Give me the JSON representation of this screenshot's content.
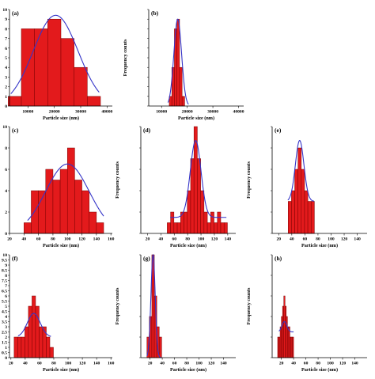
{
  "colors": {
    "bar_fill": "#e31a1c",
    "bar_stroke": "#7a0000",
    "fit": "#3535c8",
    "axis": "#000000"
  },
  "chart_data": [
    {
      "type": "bar",
      "panel": "(a)",
      "xlabel": "Particle size (nm)",
      "ylabel": "",
      "xlim": [
        3000,
        42000
      ],
      "ylim": [
        0,
        10
      ],
      "xticks": [
        10000,
        20000,
        30000,
        40000
      ],
      "yticks": [
        0,
        1,
        2,
        3,
        4,
        5,
        6,
        7,
        8,
        9,
        10
      ],
      "bin_width": 5000,
      "bins": [
        {
          "center": 5000,
          "count": 1
        },
        {
          "center": 10000,
          "count": 8
        },
        {
          "center": 15000,
          "count": 8
        },
        {
          "center": 20000,
          "count": 9
        },
        {
          "center": 25000,
          "count": 7
        },
        {
          "center": 30000,
          "count": 4
        },
        {
          "center": 35000,
          "count": 1
        }
      ],
      "fit": {
        "mean": 20500,
        "sd": 8500,
        "peak": 9.4,
        "range": [
          3500,
          37000
        ]
      },
      "show_yticklabels": true
    },
    {
      "type": "bar",
      "panel": "(b)",
      "xlabel": "Particle size (nm)",
      "ylabel": "Frequency counts",
      "xlim": [
        5000,
        42000
      ],
      "ylim": [
        0,
        10
      ],
      "xticks": [
        10000,
        20000,
        30000,
        40000
      ],
      "yticks": [
        0,
        1,
        2,
        3,
        4,
        5,
        6,
        7,
        8,
        9,
        10
      ],
      "bin_width": 1000,
      "bins": [
        {
          "center": 13500,
          "count": 1
        },
        {
          "center": 14500,
          "count": 4
        },
        {
          "center": 15500,
          "count": 8
        },
        {
          "center": 16500,
          "count": 9
        },
        {
          "center": 17500,
          "count": 4
        },
        {
          "center": 18500,
          "count": 1
        }
      ],
      "fit": {
        "mean": 16300,
        "sd": 1500,
        "peak": 9.0,
        "range": [
          12500,
          20500
        ]
      },
      "show_yticklabels": false
    },
    {
      "type": "bar",
      "panel": "(c)",
      "xlabel": "Particle size (nm)",
      "ylabel": "",
      "xlim": [
        20,
        162
      ],
      "ylim": [
        0,
        10
      ],
      "xticks": [
        20,
        40,
        60,
        80,
        100,
        120,
        140,
        160
      ],
      "yticks": [
        0,
        2,
        4,
        6,
        8,
        10
      ],
      "bin_width": 10,
      "bins": [
        {
          "center": 45,
          "count": 1
        },
        {
          "center": 55,
          "count": 4
        },
        {
          "center": 65,
          "count": 4
        },
        {
          "center": 75,
          "count": 6
        },
        {
          "center": 85,
          "count": 5
        },
        {
          "center": 95,
          "count": 6
        },
        {
          "center": 105,
          "count": 8
        },
        {
          "center": 115,
          "count": 5
        },
        {
          "center": 125,
          "count": 4
        },
        {
          "center": 135,
          "count": 2
        },
        {
          "center": 145,
          "count": 1
        }
      ],
      "fit": {
        "mean": 100,
        "sd": 30,
        "peak": 6.5,
        "range": [
          45,
          150
        ]
      },
      "show_yticklabels": true
    },
    {
      "type": "bar",
      "panel": "(d)",
      "xlabel": "Particle size (nm)",
      "ylabel": "Frequency counts",
      "xlim": [
        10,
        152
      ],
      "ylim": [
        0,
        10
      ],
      "xticks": [
        20,
        40,
        60,
        80,
        100,
        120,
        140
      ],
      "yticks": [
        0,
        2,
        4,
        6,
        8,
        10
      ],
      "bin_width": 5,
      "bins": [
        {
          "center": 52,
          "count": 1
        },
        {
          "center": 57,
          "count": 2
        },
        {
          "center": 62,
          "count": 1
        },
        {
          "center": 67,
          "count": 1
        },
        {
          "center": 72,
          "count": 2
        },
        {
          "center": 77,
          "count": 2
        },
        {
          "center": 82,
          "count": 4
        },
        {
          "center": 87,
          "count": 7
        },
        {
          "center": 92,
          "count": 10
        },
        {
          "center": 97,
          "count": 7
        },
        {
          "center": 102,
          "count": 4
        },
        {
          "center": 107,
          "count": 2
        },
        {
          "center": 112,
          "count": 1
        },
        {
          "center": 117,
          "count": 2
        },
        {
          "center": 122,
          "count": 1
        },
        {
          "center": 127,
          "count": 2
        },
        {
          "center": 132,
          "count": 1
        },
        {
          "center": 137,
          "count": 1
        }
      ],
      "fit": {
        "mean": 92,
        "sd": 8,
        "peak": 8.7,
        "base": 1.5,
        "range": [
          54,
          138
        ]
      },
      "show_yticklabels": false
    },
    {
      "type": "bar",
      "panel": "(e)",
      "xlabel": "Particle size (nm)",
      "ylabel": "Frequency counts",
      "xlim": [
        10,
        155
      ],
      "ylim": [
        0,
        10
      ],
      "xticks": [
        20,
        40,
        60,
        80,
        100,
        120,
        140
      ],
      "yticks": [
        0,
        2,
        4,
        6,
        8,
        10
      ],
      "bin_width": 5,
      "bins": [
        {
          "center": 37,
          "count": 3
        },
        {
          "center": 42,
          "count": 4
        },
        {
          "center": 47,
          "count": 6
        },
        {
          "center": 52,
          "count": 8
        },
        {
          "center": 57,
          "count": 6
        },
        {
          "center": 62,
          "count": 4
        },
        {
          "center": 67,
          "count": 3
        },
        {
          "center": 72,
          "count": 3
        }
      ],
      "fit": {
        "mean": 52,
        "sd": 6.5,
        "peak": 8.7,
        "base": 3,
        "range": [
          34,
          74
        ]
      },
      "show_yticklabels": false
    },
    {
      "type": "bar",
      "panel": "(f)",
      "xlabel": "Particle size (nm)",
      "ylabel": "",
      "xlim": [
        18,
        162
      ],
      "ylim": [
        0,
        10
      ],
      "xticks": [
        20,
        40,
        60,
        80,
        100,
        120,
        140,
        160
      ],
      "yticks": [
        0,
        0.5,
        1,
        1.5,
        2,
        2.5,
        3,
        3.5,
        4,
        4.5,
        5,
        5.5,
        6,
        6.5,
        7,
        7.5,
        8,
        8.5,
        9,
        9.5,
        10
      ],
      "ytick_labels": [
        "0",
        "0.5",
        "1",
        "1.5",
        "2",
        "2.5",
        "3",
        "3.5",
        "4",
        "4.5",
        "5",
        "5.5",
        "6",
        "6.5",
        "7",
        "7.5",
        "8",
        "8.5",
        "9",
        "9.5",
        "10"
      ],
      "bin_width": 5,
      "bins": [
        {
          "center": 27,
          "count": 2
        },
        {
          "center": 32,
          "count": 2
        },
        {
          "center": 37,
          "count": 2
        },
        {
          "center": 42,
          "count": 3
        },
        {
          "center": 47,
          "count": 5
        },
        {
          "center": 52,
          "count": 6
        },
        {
          "center": 57,
          "count": 5
        },
        {
          "center": 62,
          "count": 3
        },
        {
          "center": 67,
          "count": 3
        },
        {
          "center": 72,
          "count": 2
        },
        {
          "center": 77,
          "count": 1
        }
      ],
      "fit": {
        "mean": 52,
        "sd": 9,
        "peak": 4.3,
        "base": 2,
        "range": [
          30,
          76
        ]
      },
      "show_yticklabels": true
    },
    {
      "type": "bar",
      "panel": "(g)",
      "xlabel": "Particle size (nm)",
      "ylabel": "Frequency counts",
      "xlim": [
        5,
        160
      ],
      "ylim": [
        0,
        10
      ],
      "xticks": [
        20,
        40,
        60,
        80,
        100,
        120,
        140
      ],
      "yticks": [
        0,
        2,
        4,
        6,
        8,
        10
      ],
      "bin_width": 4,
      "bins": [
        {
          "center": 17,
          "count": 2
        },
        {
          "center": 21,
          "count": 4
        },
        {
          "center": 25,
          "count": 10
        },
        {
          "center": 29,
          "count": 6
        },
        {
          "center": 33,
          "count": 3
        },
        {
          "center": 37,
          "count": 2
        }
      ],
      "fit": {
        "mean": 25,
        "sd": 3.5,
        "peak": 10,
        "range": [
          15,
          38
        ]
      },
      "show_yticklabels": false
    },
    {
      "type": "bar",
      "panel": "(h)",
      "xlabel": "Particle size (nm)",
      "ylabel": "Frequency counts",
      "xlim": [
        5,
        160
      ],
      "ylim": [
        0,
        10
      ],
      "xticks": [
        20,
        40,
        60,
        80,
        100,
        120,
        140
      ],
      "yticks": [
        0,
        2,
        4,
        6,
        8,
        10
      ],
      "bin_width": 2,
      "bins": [
        {
          "center": 15,
          "count": 2
        },
        {
          "center": 17,
          "count": 2
        },
        {
          "center": 19,
          "count": 3
        },
        {
          "center": 21,
          "count": 4
        },
        {
          "center": 23,
          "count": 5
        },
        {
          "center": 25,
          "count": 6
        },
        {
          "center": 27,
          "count": 5
        },
        {
          "center": 29,
          "count": 4
        },
        {
          "center": 31,
          "count": 3
        },
        {
          "center": 33,
          "count": 3
        },
        {
          "center": 35,
          "count": 2
        },
        {
          "center": 37,
          "count": 2
        },
        {
          "center": 39,
          "count": 2
        }
      ],
      "fit": {
        "mean": 25,
        "sd": 4,
        "peak": 3.5,
        "base": 2.5,
        "range": [
          16,
          40
        ]
      },
      "show_yticklabels": false
    }
  ]
}
